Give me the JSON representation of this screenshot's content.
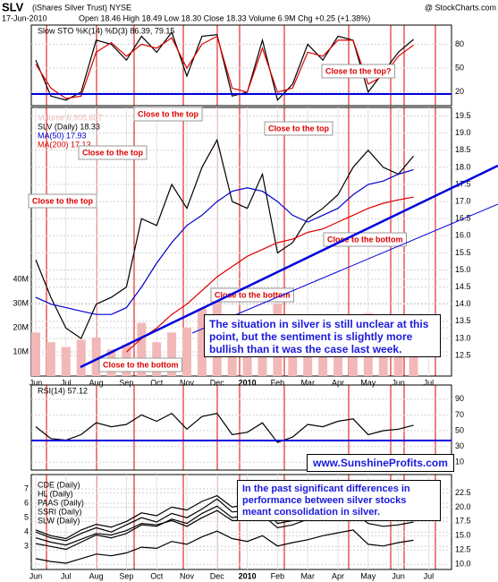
{
  "header": {
    "symbol": "SLV",
    "name": "(iShares Silver Trust) NYSE",
    "source": "@ StockCharts.com",
    "date": "17-Jun-2010",
    "quote": "Open 18.46  High 18.49  Low 18.30  Close 18.33  Volume 6.9M  Chg +0.25 (+1.38%)"
  },
  "notes": {
    "situation": "The situation in silver is still unclear at this point, but the sentiment is slightly more bullish than it was the case last week.",
    "website": "www.SunshineProfits.com",
    "stocks": "In the past significant differences in performance between silver stocks meant consolidation in silver."
  },
  "chart_data": [
    {
      "type": "line",
      "title": "Slow STO %K(14) %D(3) 86.39, 79.15",
      "ylim": [
        3,
        104
      ],
      "yticks": [
        20,
        50,
        80
      ],
      "annotations": [
        "Close to the top?"
      ],
      "series": [
        {
          "color": "#000000",
          "values": [
            60,
            15,
            10,
            20,
            85,
            80,
            60,
            90,
            70,
            95,
            40,
            90,
            92,
            15,
            20,
            85,
            10,
            30,
            80,
            60,
            90,
            85,
            20,
            45,
            70,
            86,
            null
          ]
        },
        {
          "color": "#dd0000",
          "values": [
            55,
            25,
            12,
            15,
            70,
            82,
            65,
            80,
            75,
            88,
            50,
            80,
            90,
            25,
            20,
            75,
            20,
            25,
            70,
            65,
            85,
            85,
            30,
            40,
            65,
            79,
            null
          ]
        }
      ]
    },
    {
      "type": "line",
      "ylim": [
        11.9,
        19.75
      ],
      "y2lim": [
        0,
        111
      ],
      "yticks": [
        12.5,
        {
          "value": 13,
          "label": "13.0"
        },
        13.5,
        {
          "value": 14,
          "label": "14.0"
        },
        14.5,
        {
          "value": 15,
          "label": "15.0"
        },
        15.5,
        {
          "value": 16,
          "label": "16.0"
        },
        16.5,
        {
          "value": 17,
          "label": "17.0"
        },
        17.5,
        {
          "value": 18,
          "label": "18.0"
        },
        18.5,
        {
          "value": 19,
          "label": "19.0"
        },
        19.5
      ],
      "y2ticks": [
        {
          "value": 10,
          "label": "10M"
        },
        {
          "value": 20,
          "label": "20M"
        },
        {
          "value": 30,
          "label": "30M"
        },
        {
          "value": 40,
          "label": "40M"
        }
      ],
      "categories": [
        "Jun",
        null,
        "Jul",
        null,
        "Aug",
        null,
        "Sep",
        null,
        "Oct",
        null,
        "Nov",
        null,
        "Dec",
        null,
        "2010",
        null,
        "Feb",
        null,
        "Mar",
        null,
        "Apr",
        null,
        "May",
        null,
        "Jun",
        null,
        "Jul"
      ],
      "annotations": [
        "Close to the top",
        "Close to the top",
        "Close to the top",
        "Close to the top",
        "Close to the bottom",
        "Close to the bottom",
        "Close to the bottom"
      ],
      "series": [
        {
          "name": "Volume 6,905,607",
          "color": "#f2b8b8",
          "axis": "y2",
          "type": "bar",
          "values": [
            18,
            14,
            12,
            15,
            16,
            11,
            13,
            22,
            14,
            18,
            20,
            28,
            35,
            24,
            15,
            14,
            30,
            16,
            12,
            10,
            11,
            14,
            26,
            18,
            12,
            10,
            null
          ]
        },
        {
          "name": "SLV (Daily) 18.33",
          "color": "#000000",
          "values": [
            15.3,
            14.2,
            13.3,
            13.0,
            14.0,
            14.2,
            14.5,
            16.5,
            16.3,
            17.5,
            16.8,
            18.0,
            18.8,
            17.0,
            16.8,
            17.8,
            15.5,
            15.8,
            16.5,
            16.8,
            17.2,
            18.0,
            18.5,
            18.0,
            17.8,
            18.33,
            null
          ]
        },
        {
          "name": "MA(50) 17.93",
          "color": "#0000cc",
          "values": [
            14.2,
            14.0,
            13.9,
            13.8,
            13.7,
            13.7,
            13.9,
            14.5,
            15.2,
            15.8,
            16.3,
            16.6,
            17.0,
            17.3,
            17.4,
            17.3,
            17.0,
            16.6,
            16.4,
            16.6,
            16.8,
            17.2,
            17.5,
            17.6,
            17.8,
            17.93,
            null
          ]
        },
        {
          "name": "MA(200) 17.13",
          "color": "#dd0000",
          "values": [
            null,
            null,
            null,
            null,
            null,
            null,
            12.6,
            13.0,
            13.3,
            13.7,
            14.0,
            14.4,
            14.8,
            15.1,
            15.4,
            15.6,
            15.8,
            15.9,
            16.1,
            16.2,
            16.4,
            16.6,
            16.8,
            16.95,
            17.05,
            17.13,
            null
          ]
        }
      ]
    },
    {
      "type": "line",
      "title": "RSI(14) 57.12",
      "ylim": [
        0,
        108
      ],
      "yticks": [
        10,
        30,
        50,
        70,
        90
      ],
      "series": [
        {
          "color": "#000000",
          "values": [
            55,
            40,
            38,
            45,
            60,
            55,
            58,
            70,
            62,
            72,
            52,
            68,
            72,
            45,
            48,
            60,
            35,
            42,
            58,
            55,
            62,
            65,
            45,
            50,
            52,
            57,
            null
          ]
        }
      ]
    },
    {
      "type": "line",
      "ylim": [
        1.4,
        8.0
      ],
      "y2lim": [
        9.1,
        25.7
      ],
      "yticks": [
        3,
        4,
        5,
        6,
        7
      ],
      "y2ticks": [
        {
          "value": 10,
          "label": "10.0"
        },
        {
          "value": 12.5,
          "label": "12.5"
        },
        {
          "value": 15,
          "label": "15.0"
        },
        {
          "value": 17.5,
          "label": "17.5"
        },
        {
          "value": 20,
          "label": "20.0"
        },
        {
          "value": 22.5,
          "label": "22.5"
        }
      ],
      "categories": [
        "Jun",
        null,
        "Jul",
        null,
        "Aug",
        null,
        "Sep",
        null,
        "Oct",
        null,
        "Nov",
        null,
        "Dec",
        null,
        "2010",
        null,
        "Feb",
        null,
        "Mar",
        null,
        "Apr",
        null,
        "May",
        null,
        "Jun",
        null,
        "Jul"
      ],
      "series": [
        {
          "name": "CDE (Daily)",
          "color": "#000000",
          "values": [
            4.0,
            3.6,
            3.4,
            3.9,
            4.3,
            4.0,
            4.5,
            5.0,
            4.7,
            5.3,
            5.0,
            5.6,
            6.3,
            5.4,
            5.5,
            6.0,
            4.9,
            5.2,
            5.6,
            5.9,
            6.2,
            6.8,
            6.4,
            6.2,
            6.6,
            7.0,
            null
          ]
        },
        {
          "name": "HL (Daily)",
          "color": "#000000",
          "values": [
            3.2,
            3.0,
            2.8,
            3.3,
            3.8,
            3.6,
            3.9,
            4.5,
            4.4,
            4.9,
            4.6,
            5.3,
            5.8,
            5.0,
            5.2,
            5.8,
            4.6,
            4.8,
            5.3,
            5.6,
            6.0,
            6.4,
            5.6,
            5.5,
            5.7,
            5.9,
            null
          ]
        },
        {
          "name": "PAAS (Daily)",
          "color": "#000000",
          "axis": "y2",
          "values": [
            16.0,
            15.0,
            14.5,
            16.0,
            17.0,
            16.5,
            17.5,
            19.0,
            18.5,
            20.0,
            19.5,
            21.0,
            22.0,
            20.0,
            20.5,
            22.0,
            18.5,
            19.5,
            20.5,
            21.5,
            22.5,
            23.5,
            21.5,
            22.0,
            22.5,
            23.5,
            null
          ]
        },
        {
          "name": "SSRI (Daily)",
          "color": "#000000",
          "values": [
            3.6,
            3.3,
            3.1,
            3.5,
            3.9,
            3.8,
            4.1,
            4.6,
            4.5,
            4.8,
            4.4,
            5.0,
            5.5,
            4.8,
            4.8,
            5.2,
            4.3,
            4.5,
            4.9,
            5.1,
            5.3,
            5.4,
            4.6,
            4.4,
            4.5,
            4.7,
            null
          ]
        },
        {
          "name": "SLW (Daily)",
          "color": "#000000",
          "axis": "y2",
          "values": [
            11.0,
            10.5,
            10.2,
            11.0,
            11.8,
            11.5,
            12.0,
            13.0,
            12.8,
            14.0,
            13.5,
            14.8,
            15.8,
            14.5,
            14.0,
            15.0,
            13.2,
            13.8,
            14.3,
            15.0,
            15.5,
            16.0,
            13.5,
            13.2,
            13.8,
            14.2,
            null
          ]
        }
      ]
    }
  ]
}
